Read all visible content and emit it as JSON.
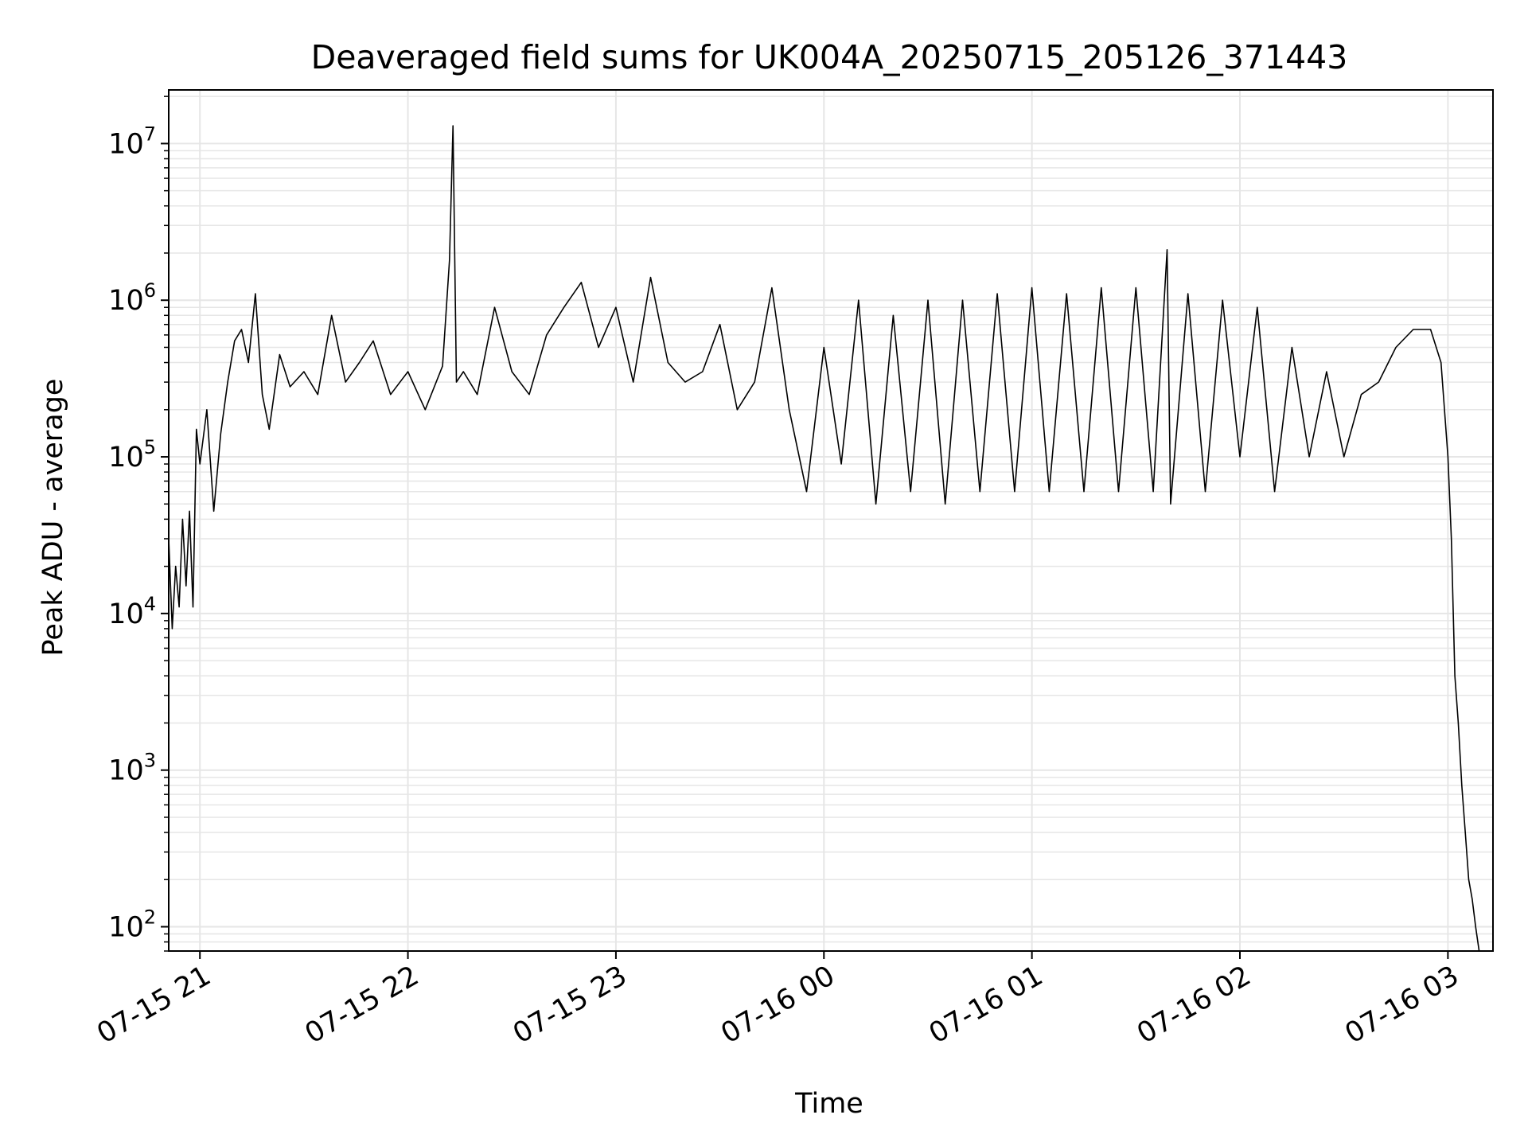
{
  "chart_data": {
    "type": "line",
    "title": "Deaveraged field sums for UK004A_20250715_205126_371443",
    "xlabel": "Time",
    "ylabel": "Peak ADU - average",
    "yscale": "log",
    "grid": true,
    "grid_minor": true,
    "line_color": "#000000",
    "grid_color": "#e6e6e6",
    "xlim": [
      "2025-07-15 20:51",
      "2025-07-16 03:13"
    ],
    "ylim": [
      70,
      22000000
    ],
    "x_ticks": [
      {
        "value": "2025-07-15 21:00",
        "label": "07-15 21"
      },
      {
        "value": "2025-07-15 22:00",
        "label": "07-15 22"
      },
      {
        "value": "2025-07-15 23:00",
        "label": "07-15 23"
      },
      {
        "value": "2025-07-16 00:00",
        "label": "07-16 00"
      },
      {
        "value": "2025-07-16 01:00",
        "label": "07-16 01"
      },
      {
        "value": "2025-07-16 02:00",
        "label": "07-16 02"
      },
      {
        "value": "2025-07-16 03:00",
        "label": "07-16 03"
      }
    ],
    "y_ticks": [
      {
        "value": 100,
        "base": "10",
        "exp": "2"
      },
      {
        "value": 1000,
        "base": "10",
        "exp": "3"
      },
      {
        "value": 10000,
        "base": "10",
        "exp": "4"
      },
      {
        "value": 100000,
        "base": "10",
        "exp": "5"
      },
      {
        "value": 1000000,
        "base": "10",
        "exp": "6"
      },
      {
        "value": 10000000,
        "base": "10",
        "exp": "7"
      }
    ],
    "series": [
      {
        "x": [
          "2025-07-15 20:51",
          "2025-07-15 20:52",
          "2025-07-15 20:53",
          "2025-07-15 20:54",
          "2025-07-15 20:55",
          "2025-07-15 20:56",
          "2025-07-15 20:57",
          "2025-07-15 20:58",
          "2025-07-15 20:59",
          "2025-07-15 21:00",
          "2025-07-15 21:02",
          "2025-07-15 21:04",
          "2025-07-15 21:06",
          "2025-07-15 21:08",
          "2025-07-15 21:10",
          "2025-07-15 21:12",
          "2025-07-15 21:14",
          "2025-07-15 21:16",
          "2025-07-15 21:18",
          "2025-07-15 21:20",
          "2025-07-15 21:23",
          "2025-07-15 21:26",
          "2025-07-15 21:30",
          "2025-07-15 21:34",
          "2025-07-15 21:38",
          "2025-07-15 21:42",
          "2025-07-15 21:46",
          "2025-07-15 21:50",
          "2025-07-15 21:55",
          "2025-07-15 22:00",
          "2025-07-15 22:05",
          "2025-07-15 22:10",
          "2025-07-15 22:12",
          "2025-07-15 22:13",
          "2025-07-15 22:14",
          "2025-07-15 22:16",
          "2025-07-15 22:20",
          "2025-07-15 22:25",
          "2025-07-15 22:30",
          "2025-07-15 22:35",
          "2025-07-15 22:40",
          "2025-07-15 22:45",
          "2025-07-15 22:50",
          "2025-07-15 22:55",
          "2025-07-15 23:00",
          "2025-07-15 23:05",
          "2025-07-15 23:10",
          "2025-07-15 23:15",
          "2025-07-15 23:20",
          "2025-07-15 23:25",
          "2025-07-15 23:30",
          "2025-07-15 23:35",
          "2025-07-15 23:40",
          "2025-07-15 23:45",
          "2025-07-15 23:50",
          "2025-07-15 23:55",
          "2025-07-16 00:00",
          "2025-07-16 00:05",
          "2025-07-16 00:10",
          "2025-07-16 00:15",
          "2025-07-16 00:20",
          "2025-07-16 00:25",
          "2025-07-16 00:30",
          "2025-07-16 00:35",
          "2025-07-16 00:40",
          "2025-07-16 00:45",
          "2025-07-16 00:50",
          "2025-07-16 00:55",
          "2025-07-16 01:00",
          "2025-07-16 01:05",
          "2025-07-16 01:10",
          "2025-07-16 01:15",
          "2025-07-16 01:20",
          "2025-07-16 01:25",
          "2025-07-16 01:30",
          "2025-07-16 01:35",
          "2025-07-16 01:39",
          "2025-07-16 01:40",
          "2025-07-16 01:45",
          "2025-07-16 01:50",
          "2025-07-16 01:55",
          "2025-07-16 02:00",
          "2025-07-16 02:05",
          "2025-07-16 02:10",
          "2025-07-16 02:15",
          "2025-07-16 02:20",
          "2025-07-16 02:25",
          "2025-07-16 02:30",
          "2025-07-16 02:35",
          "2025-07-16 02:40",
          "2025-07-16 02:45",
          "2025-07-16 02:50",
          "2025-07-16 02:55",
          "2025-07-16 02:58",
          "2025-07-16 03:00",
          "2025-07-16 03:01",
          "2025-07-16 03:02",
          "2025-07-16 03:03",
          "2025-07-16 03:04",
          "2025-07-16 03:05",
          "2025-07-16 03:06",
          "2025-07-16 03:07",
          "2025-07-16 03:08",
          "2025-07-16 03:09",
          "2025-07-16 03:10",
          "2025-07-16 03:11",
          "2025-07-16 03:12"
        ],
        "y": [
          30000,
          8000,
          20000,
          11000,
          40000,
          15000,
          45000,
          11000,
          150000,
          90000,
          200000,
          45000,
          140000,
          300000,
          550000,
          650000,
          400000,
          1100000,
          250000,
          150000,
          450000,
          280000,
          350000,
          250000,
          800000,
          300000,
          400000,
          550000,
          250000,
          350000,
          200000,
          380000,
          1800000,
          13000000,
          300000,
          350000,
          250000,
          900000,
          350000,
          250000,
          600000,
          900000,
          1300000,
          500000,
          900000,
          300000,
          1400000,
          400000,
          300000,
          350000,
          700000,
          200000,
          300000,
          1200000,
          200000,
          60000,
          500000,
          90000,
          1000000,
          50000,
          800000,
          60000,
          1000000,
          50000,
          1000000,
          60000,
          1100000,
          60000,
          1200000,
          60000,
          1100000,
          60000,
          1200000,
          60000,
          1200000,
          60000,
          2100000,
          50000,
          1100000,
          60000,
          1000000,
          100000,
          900000,
          60000,
          500000,
          100000,
          350000,
          100000,
          250000,
          300000,
          500000,
          650000,
          650000,
          400000,
          100000,
          30000,
          4000,
          2000,
          800,
          400,
          200,
          150,
          100,
          70,
          70,
          70,
          70
        ]
      }
    ]
  }
}
